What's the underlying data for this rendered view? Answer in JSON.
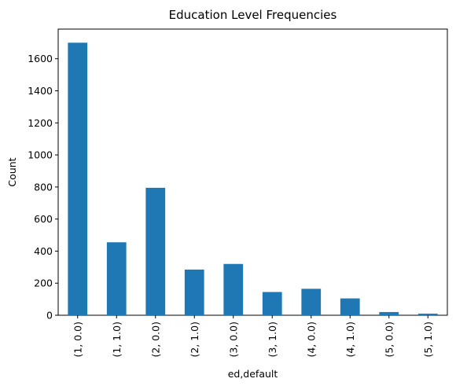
{
  "chart_data": {
    "type": "bar",
    "title": "Education Level Frequencies",
    "xlabel": "ed,default",
    "ylabel": "Count",
    "categories": [
      "(1, 0.0)",
      "(1, 1.0)",
      "(2, 0.0)",
      "(2, 1.0)",
      "(3, 0.0)",
      "(3, 1.0)",
      "(4, 0.0)",
      "(4, 1.0)",
      "(5, 0.0)",
      "(5, 1.0)"
    ],
    "values": [
      1700,
      455,
      795,
      285,
      320,
      145,
      165,
      105,
      20,
      10
    ],
    "ylim": [
      0,
      1785
    ],
    "yticks": [
      0,
      200,
      400,
      600,
      800,
      1000,
      1200,
      1400,
      1600
    ],
    "bar_color": "#1f77b4",
    "grid": false,
    "legend": "none"
  }
}
